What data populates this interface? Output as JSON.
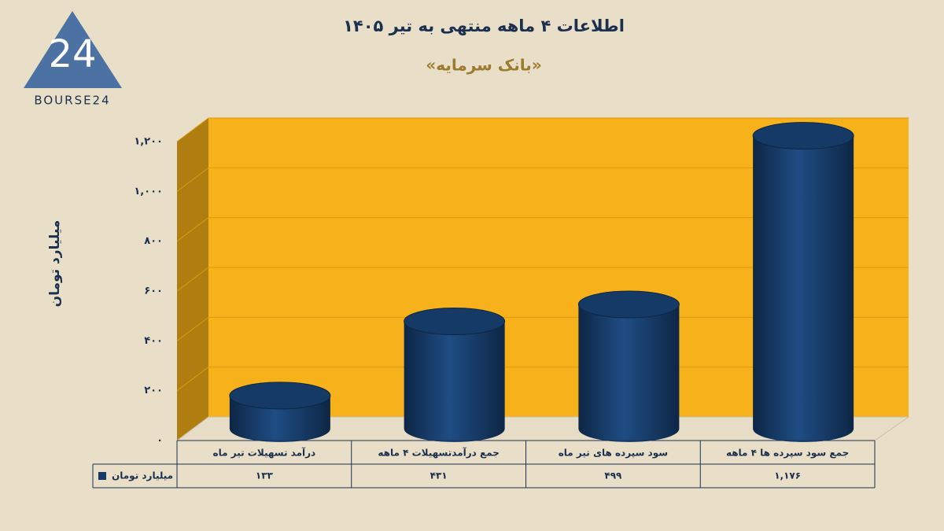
{
  "logo": {
    "mark": "24",
    "text": "BOURSE24"
  },
  "chart_data": {
    "type": "bar3d",
    "title": "اطلاعات ۴ ماهه منتهی به تیر ۱۴۰۵",
    "subtitle": "«بانک سرمایه»",
    "y_label": "میلیارد تومان",
    "categories": [
      "درآمد تسهیلات تیر ماه",
      "جمع درآمدتسهیلات ۴ ماهه",
      "سود سپرده های تیر ماه",
      "جمع سود سپرده ها ۴ ماهه"
    ],
    "series": [
      {
        "name": "میلیارد تومان",
        "color": "#163a66",
        "values": [
          133,
          431,
          499,
          1176
        ],
        "value_labels": [
          "۱۳۳",
          "۴۳۱",
          "۴۹۹",
          "۱,۱۷۶"
        ]
      }
    ],
    "ylim": [
      0,
      1200
    ],
    "yticks": [
      {
        "value": 0,
        "label": "۰"
      },
      {
        "value": 200,
        "label": "۲۰۰"
      },
      {
        "value": 400,
        "label": "۴۰۰"
      },
      {
        "value": 600,
        "label": "۶۰۰"
      },
      {
        "value": 800,
        "label": "۸۰۰"
      },
      {
        "value": 1000,
        "label": "۱,۰۰۰"
      },
      {
        "value": 1200,
        "label": "۱,۲۰۰"
      }
    ],
    "grid": true
  }
}
